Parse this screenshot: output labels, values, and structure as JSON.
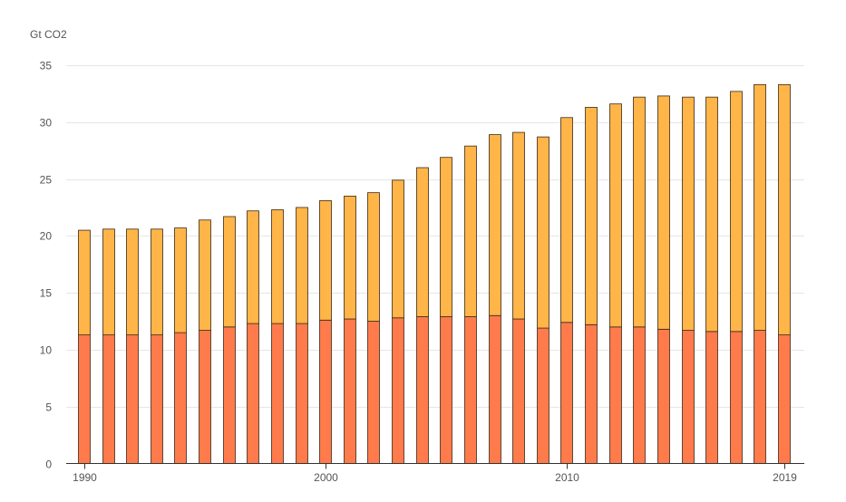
{
  "chart_data": {
    "type": "bar",
    "stacked": true,
    "ylabel": "Gt CO2",
    "ylim": [
      0,
      35
    ],
    "yticks": [
      0,
      5,
      10,
      15,
      20,
      25,
      30,
      35
    ],
    "grid": true,
    "categories": [
      "1990",
      "1991",
      "1992",
      "1993",
      "1994",
      "1995",
      "1996",
      "1997",
      "1998",
      "1999",
      "2000",
      "2001",
      "2002",
      "2003",
      "2004",
      "2005",
      "2006",
      "2007",
      "2008",
      "2009",
      "2010",
      "2011",
      "2012",
      "2013",
      "2014",
      "2015",
      "2016",
      "2017",
      "2018",
      "2019"
    ],
    "xtick_labels": [
      "1990",
      "2000",
      "2010",
      "2019"
    ],
    "series": [
      {
        "color": "#ff7b4b",
        "values": [
          11.3,
          11.3,
          11.3,
          11.3,
          11.5,
          11.7,
          12.0,
          12.3,
          12.3,
          12.3,
          12.6,
          12.7,
          12.5,
          12.8,
          12.9,
          12.9,
          12.9,
          13.0,
          12.7,
          11.9,
          12.4,
          12.2,
          12.0,
          12.0,
          11.8,
          11.7,
          11.6,
          11.6,
          11.7,
          11.3
        ]
      },
      {
        "color": "#ffb547",
        "values": [
          9.2,
          9.3,
          9.3,
          9.3,
          9.2,
          9.7,
          9.7,
          9.9,
          10.0,
          10.2,
          10.5,
          10.8,
          11.3,
          12.1,
          13.1,
          14.0,
          15.0,
          15.9,
          16.4,
          16.8,
          18.0,
          19.1,
          19.6,
          20.2,
          20.5,
          20.5,
          20.6,
          21.1,
          21.6,
          22.0
        ]
      }
    ]
  }
}
